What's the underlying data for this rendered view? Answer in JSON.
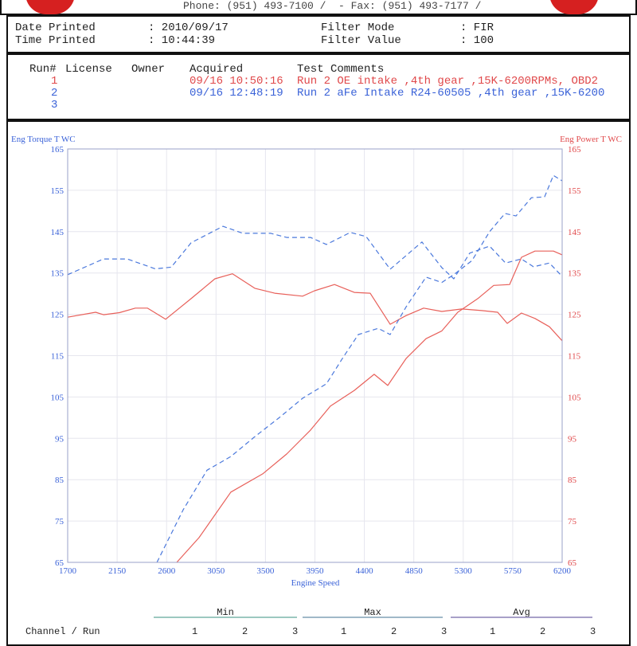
{
  "header": {
    "contact": "Phone: (951) 493-7100 /  - Fax: (951) 493-7177 /",
    "date_printed_label": "Date Printed",
    "date_printed": ": 2010/09/17",
    "time_printed_label": "Time Printed",
    "time_printed": ": 10:44:39",
    "filter_mode_label": "Filter Mode",
    "filter_mode": ": FIR",
    "filter_value_label": "Filter Value",
    "filter_value": ": 100"
  },
  "runs": {
    "columns": [
      "Run#",
      "License",
      "Owner",
      "Acquired",
      "Test Comments"
    ],
    "rows": [
      {
        "run": "1",
        "acquired": "09/16 10:50:16",
        "comment": "Run 2 OE intake ,4th gear ,15K-6200RPMs, OBD2",
        "color": "#e0484a"
      },
      {
        "run": "2",
        "acquired": "09/16 12:48:19",
        "comment": "Run 2 aFe Intake R24-60505 ,4th gear ,15K-6200",
        "color": "#3a62d8"
      },
      {
        "run": "3",
        "acquired": "",
        "comment": "",
        "color": "#3a62d8"
      }
    ]
  },
  "chart_data": {
    "type": "line",
    "xlabel": "Engine Speed",
    "ylabel_left": "Eng Torque T WC",
    "ylabel_right": "Eng Power T WC",
    "xlim": [
      1700,
      6200
    ],
    "ylim_left": [
      65,
      165
    ],
    "ylim_right": [
      65,
      165
    ],
    "xticks": [
      1700,
      2150,
      2600,
      3050,
      3500,
      3950,
      4400,
      4850,
      5300,
      5750,
      6200
    ],
    "yticks": [
      165,
      155,
      145,
      135,
      125,
      115,
      105,
      95,
      85,
      75,
      65
    ],
    "grid": true,
    "series": [
      {
        "run": "1",
        "channel": "torque",
        "color": "#e8605a",
        "dashed": false,
        "points": [
          [
            1700,
            124.3
          ],
          [
            1954,
            125.5
          ],
          [
            2026,
            124.9
          ],
          [
            2171,
            125.4
          ],
          [
            2316,
            126.5
          ],
          [
            2425,
            126.5
          ],
          [
            2591,
            123.8
          ],
          [
            2823,
            128.8
          ],
          [
            3040,
            133.6
          ],
          [
            3200,
            134.8
          ],
          [
            3403,
            131.3
          ],
          [
            3584,
            130.1
          ],
          [
            3838,
            129.4
          ],
          [
            3947,
            130.7
          ],
          [
            4128,
            132.2
          ],
          [
            4309,
            130.3
          ],
          [
            4453,
            130.1
          ],
          [
            4635,
            122.6
          ],
          [
            4780,
            124.7
          ],
          [
            4939,
            126.5
          ],
          [
            5105,
            125.7
          ],
          [
            5287,
            126.3
          ],
          [
            5468,
            125.9
          ],
          [
            5613,
            125.5
          ],
          [
            5700,
            122.8
          ],
          [
            5830,
            125.3
          ],
          [
            5953,
            124
          ],
          [
            6084,
            122
          ],
          [
            6200,
            118.6
          ]
        ]
      },
      {
        "run": "1",
        "channel": "power",
        "color": "#e8605a",
        "dashed": false,
        "points": [
          [
            2693,
            65
          ],
          [
            2896,
            71
          ],
          [
            3185,
            82
          ],
          [
            3475,
            86.4
          ],
          [
            3693,
            91.2
          ],
          [
            3910,
            97
          ],
          [
            4091,
            102.8
          ],
          [
            4309,
            106.6
          ],
          [
            4489,
            110.5
          ],
          [
            4613,
            107.8
          ],
          [
            4780,
            114.3
          ],
          [
            4961,
            119.1
          ],
          [
            5105,
            121
          ],
          [
            5250,
            125.5
          ],
          [
            5432,
            128.8
          ],
          [
            5577,
            132
          ],
          [
            5722,
            132.2
          ],
          [
            5830,
            138.8
          ],
          [
            5953,
            140.3
          ],
          [
            6120,
            140.3
          ],
          [
            6200,
            139.4
          ]
        ]
      },
      {
        "run": "2",
        "channel": "torque",
        "color": "#4a78dc",
        "dashed": true,
        "points": [
          [
            1700,
            134.6
          ],
          [
            2026,
            138.4
          ],
          [
            2243,
            138.4
          ],
          [
            2497,
            136
          ],
          [
            2642,
            136.4
          ],
          [
            2823,
            142.3
          ],
          [
            3113,
            146.3
          ],
          [
            3294,
            144.6
          ],
          [
            3548,
            144.6
          ],
          [
            3693,
            143.6
          ],
          [
            3910,
            143.6
          ],
          [
            4055,
            141.9
          ],
          [
            4272,
            144.8
          ],
          [
            4417,
            143.8
          ],
          [
            4635,
            135.9
          ],
          [
            4744,
            138.4
          ],
          [
            4924,
            142.5
          ],
          [
            5105,
            136.3
          ],
          [
            5214,
            133.6
          ],
          [
            5359,
            139.8
          ],
          [
            5540,
            141.5
          ],
          [
            5685,
            137.4
          ],
          [
            5830,
            138.4
          ],
          [
            5939,
            136.5
          ],
          [
            6084,
            137.4
          ],
          [
            6185,
            134.6
          ]
        ]
      },
      {
        "run": "2",
        "channel": "power",
        "color": "#4a78dc",
        "dashed": true,
        "points": [
          [
            2512,
            65
          ],
          [
            2751,
            77.7
          ],
          [
            2968,
            87.3
          ],
          [
            3185,
            90.6
          ],
          [
            3403,
            95.4
          ],
          [
            3620,
            99.9
          ],
          [
            3838,
            104.7
          ],
          [
            4055,
            108.2
          ],
          [
            4200,
            114.3
          ],
          [
            4345,
            120.1
          ],
          [
            4526,
            121.6
          ],
          [
            4635,
            120.1
          ],
          [
            4780,
            126.8
          ],
          [
            4961,
            134
          ],
          [
            5105,
            132.7
          ],
          [
            5214,
            134.6
          ],
          [
            5380,
            138
          ],
          [
            5540,
            145
          ],
          [
            5680,
            149.4
          ],
          [
            5780,
            148.8
          ],
          [
            5920,
            153.2
          ],
          [
            6040,
            153.4
          ],
          [
            6120,
            158.6
          ],
          [
            6200,
            157.3
          ]
        ]
      }
    ]
  },
  "summary": {
    "groups": [
      "Min",
      "Max",
      "Avg"
    ],
    "row_label": "Channel / Run",
    "runs": [
      "1",
      "2",
      "3"
    ]
  }
}
